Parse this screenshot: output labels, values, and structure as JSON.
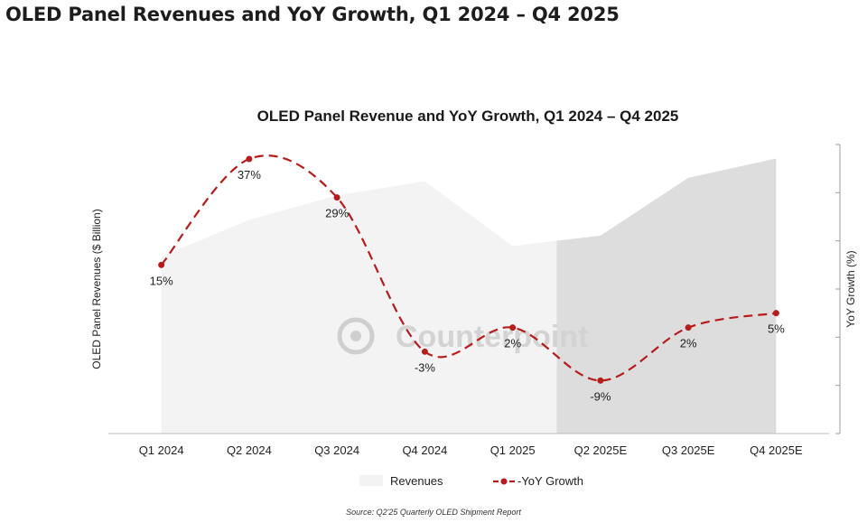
{
  "page": {
    "title": "OLED Panel Revenues and YoY Growth, Q1 2024 – Q4 2025",
    "source": "Source: Q2'25 Quarterly OLED Shipment Report",
    "watermark": "Counterpoint"
  },
  "chart_data": {
    "type": "area",
    "title": "OLED Panel Revenue and YoY Growth, Q1 2024 – Q4 2025",
    "ylabel": "OLED Panel Revenues ($ Billion)",
    "y2label": "YoY Growth (%)",
    "categories": [
      "Q1 2024",
      "Q2 2024",
      "Q3 2024",
      "Q4 2024",
      "Q1 2025",
      "Q2 2025E",
      "Q3 2025E",
      "Q4 2025E"
    ],
    "forecast_start_index": 5,
    "series": [
      {
        "name": "Revenues",
        "type": "area",
        "axis": "left",
        "color": "#f3f3f3",
        "forecast_color": "#dddddd",
        "values": [
          10.1,
          12.2,
          13.6,
          14.4,
          10.7,
          11.3,
          14.6,
          15.7
        ]
      },
      {
        "name": "-YoY Growth",
        "type": "line",
        "axis": "right",
        "color": "#b71c1c",
        "dashed": true,
        "values": [
          15,
          37,
          29,
          -3,
          2,
          -9,
          2,
          5
        ],
        "labels": [
          "15%",
          "37%",
          "29%",
          "-3%",
          "2%",
          "-9%",
          "2%",
          "5%"
        ]
      }
    ],
    "ylim": [
      0,
      16.5
    ],
    "y2lim": [
      -20,
      40
    ],
    "grid": false,
    "legend": "bottom"
  }
}
